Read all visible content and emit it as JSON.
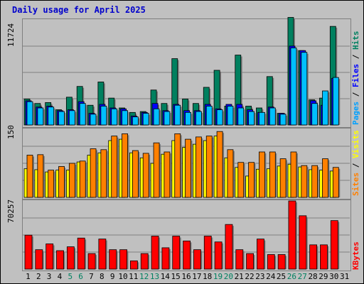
{
  "title": "Daily usage for April 2025",
  "ymax": {
    "hits": "11724",
    "sites": "150",
    "kbytes": "70257"
  },
  "right_labels": {
    "hits_parts": [
      {
        "text": "Pages",
        "color": "#00a0ff"
      },
      {
        "text": " / ",
        "color": "#000000"
      },
      {
        "text": "Files",
        "color": "#0000ff"
      },
      {
        "text": " / ",
        "color": "#000000"
      },
      {
        "text": "Hits",
        "color": "#008060"
      }
    ],
    "sites_parts": [
      {
        "text": "Sites",
        "color": "#ff8000"
      },
      {
        "text": " / ",
        "color": "#000000"
      },
      {
        "text": "Visits",
        "color": "#ffff00"
      }
    ],
    "kbytes_parts": [
      {
        "text": "KBytes",
        "color": "#ff0000"
      }
    ]
  },
  "colors": {
    "hits": "#00805f",
    "files": "#0000ff",
    "pages": "#00bfff",
    "visits": "#ffff00",
    "sites": "#ff8000",
    "kbytes": "#ff0000",
    "weekday_label": "#000000",
    "weekend_label": "#008060"
  },
  "chart_data": {
    "type": "bar",
    "categories": [
      "1",
      "2",
      "3",
      "4",
      "5",
      "6",
      "7",
      "8",
      "9",
      "10",
      "11",
      "12",
      "13",
      "14",
      "15",
      "16",
      "17",
      "18",
      "19",
      "20",
      "21",
      "22",
      "23",
      "24",
      "25",
      "26",
      "27",
      "28",
      "29",
      "30",
      "31"
    ],
    "weekend_days": [
      "5",
      "6",
      "12",
      "13",
      "19",
      "20",
      "26",
      "27"
    ],
    "series": [
      {
        "name": "Hits",
        "panel": "hits",
        "values": [
          2900,
          2400,
          2500,
          1700,
          3100,
          4300,
          2200,
          4800,
          3000,
          1900,
          1400,
          1500,
          3900,
          2400,
          7400,
          2900,
          2400,
          4200,
          6100,
          2100,
          7800,
          2100,
          1900,
          5400,
          1300,
          12000,
          8300,
          2800,
          3000,
          11000,
          0
        ]
      },
      {
        "name": "Files",
        "panel": "hits",
        "values": [
          2700,
          2000,
          2100,
          1600,
          1700,
          2600,
          1300,
          2300,
          1900,
          1800,
          1000,
          1400,
          2400,
          1600,
          2300,
          1600,
          1600,
          2300,
          1800,
          2300,
          2300,
          1700,
          1400,
          2000,
          1300,
          8800,
          8300,
          2700,
          2200,
          5200,
          0
        ]
      },
      {
        "name": "Pages",
        "panel": "hits",
        "values": [
          2600,
          1900,
          2000,
          1500,
          1600,
          2400,
          1200,
          2100,
          1800,
          1600,
          900,
          1300,
          1800,
          1500,
          2200,
          1400,
          1500,
          2100,
          1700,
          2100,
          1900,
          1500,
          1400,
          1900,
          1200,
          8600,
          8100,
          2400,
          3800,
          5300,
          0
        ]
      },
      {
        "name": "Sites",
        "panel": "sites",
        "values": [
          93,
          94,
          60,
          68,
          75,
          80,
          107,
          105,
          135,
          140,
          103,
          97,
          120,
          100,
          140,
          128,
          133,
          135,
          145,
          105,
          77,
          77,
          100,
          100,
          85,
          100,
          70,
          70,
          85,
          66,
          0
        ]
      },
      {
        "name": "Visits",
        "panel": "sites",
        "values": [
          63,
          61,
          56,
          60,
          60,
          78,
          93,
          98,
          125,
          128,
          98,
          87,
          75,
          95,
          125,
          110,
          117,
          125,
          135,
          87,
          66,
          47,
          62,
          63,
          69,
          73,
          67,
          61,
          60,
          58,
          0
        ]
      },
      {
        "name": "KBytes",
        "panel": "kbytes",
        "values": [
          35000,
          20000,
          26000,
          19000,
          23000,
          32000,
          16000,
          31000,
          20000,
          20000,
          8500,
          16000,
          34000,
          22000,
          34000,
          29000,
          20000,
          34000,
          28000,
          46000,
          20000,
          16000,
          31000,
          15000,
          15000,
          70257,
          55000,
          25000,
          25000,
          50000,
          0
        ]
      }
    ],
    "ymax": {
      "hits": 11724,
      "sites": 150,
      "kbytes": 70257
    }
  }
}
